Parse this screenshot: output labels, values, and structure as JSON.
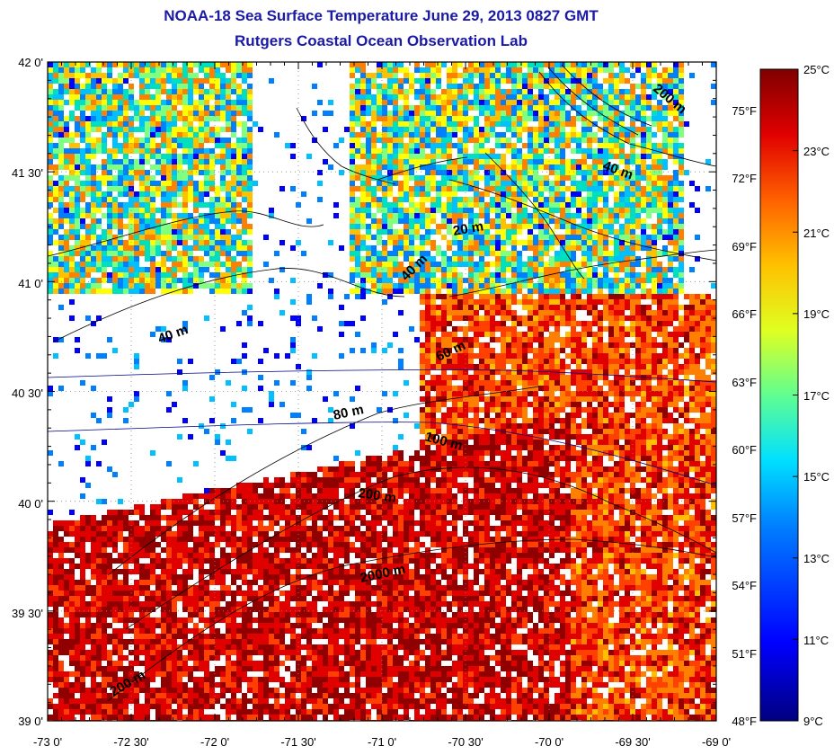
{
  "header": {
    "title": "NOAA-18 Sea Surface Temperature June 29, 2013 0827 GMT",
    "subtitle": "Rutgers Coastal Ocean Observation Lab"
  },
  "map": {
    "lat_labels": [
      "42 0'",
      "41 30'",
      "41 0'",
      "40 30'",
      "40 0'",
      "39 30'",
      "39 0'"
    ],
    "lon_labels": [
      "-73 0'",
      "-72 30'",
      "-72 0'",
      "-71 30'",
      "-71 0'",
      "-70 30'",
      "-70 0'",
      "-69 30'",
      "-69 0'"
    ],
    "contour_labels": [
      "20 m",
      "40 m",
      "40 m",
      "40 m",
      "60 m",
      "80 m",
      "100 m",
      "200 m",
      "200 m",
      "2000 m",
      "200 m"
    ],
    "palette": [
      "#000080",
      "#0000ff",
      "#0080ff",
      "#00c0ff",
      "#00e0c0",
      "#80ff80",
      "#ffff00",
      "#ffc000",
      "#ff8000",
      "#ff4000",
      "#e00000",
      "#900000"
    ]
  },
  "colorbar": {
    "celsius_labels": [
      "25°C",
      "23°C",
      "21°C",
      "19°C",
      "17°C",
      "15°C",
      "13°C",
      "11°C",
      "9°C"
    ],
    "fahrenheit_labels": [
      "75°F",
      "72°F",
      "69°F",
      "66°F",
      "63°F",
      "60°F",
      "57°F",
      "54°F",
      "51°F",
      "48°F"
    ],
    "min_c": 9,
    "max_c": 25
  }
}
